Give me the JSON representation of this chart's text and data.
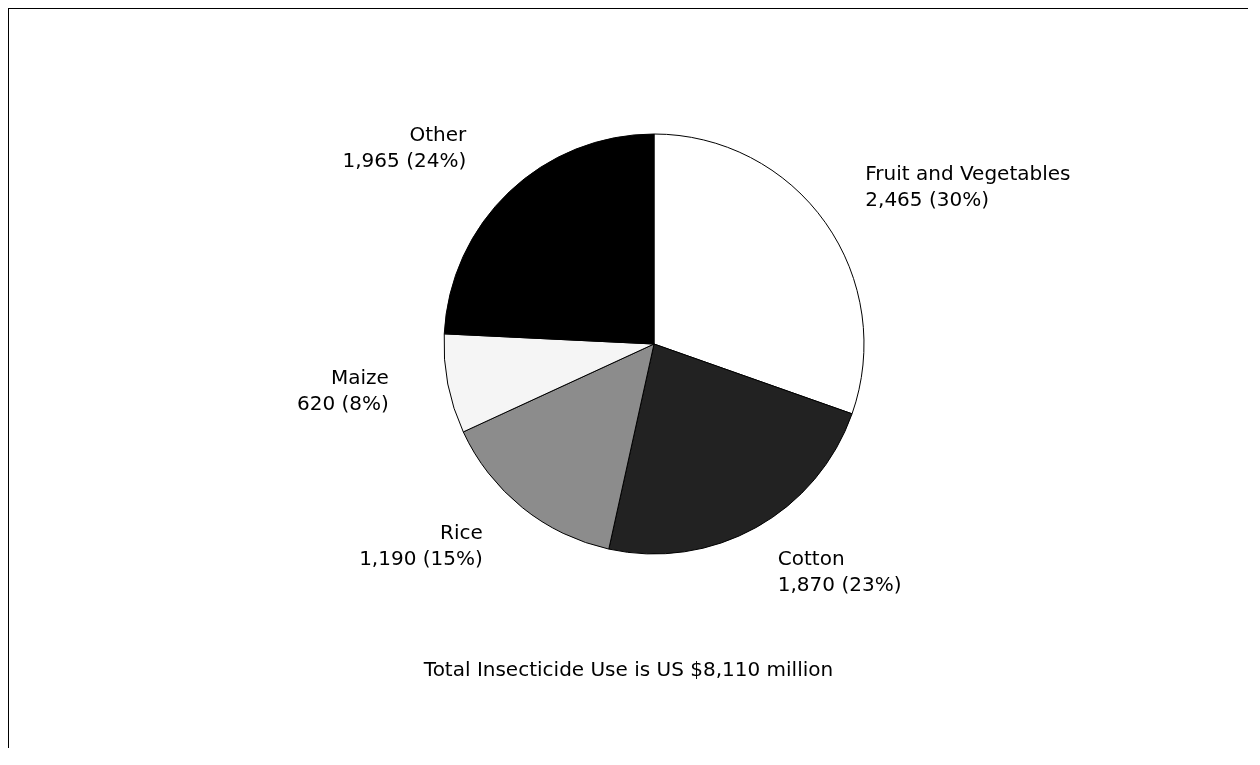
{
  "chart_data": {
    "type": "pie",
    "categories": [
      "Fruit and Vegetables",
      "Cotton",
      "Rice",
      "Maize",
      "Other"
    ],
    "values": [
      2465,
      1870,
      1190,
      620,
      1965
    ],
    "colors": [
      "#ffffff",
      "#222222",
      "#8c8c8c",
      "#f5f5f5",
      "#000000"
    ],
    "value_labels": [
      "2,465 (30%)",
      "1,870 (23%)",
      "1,190 (15%)",
      "620 (8%)",
      "1,965 (24%)"
    ],
    "annotations": [
      "Total Insecticide Use is US  $8,110 million"
    ]
  }
}
